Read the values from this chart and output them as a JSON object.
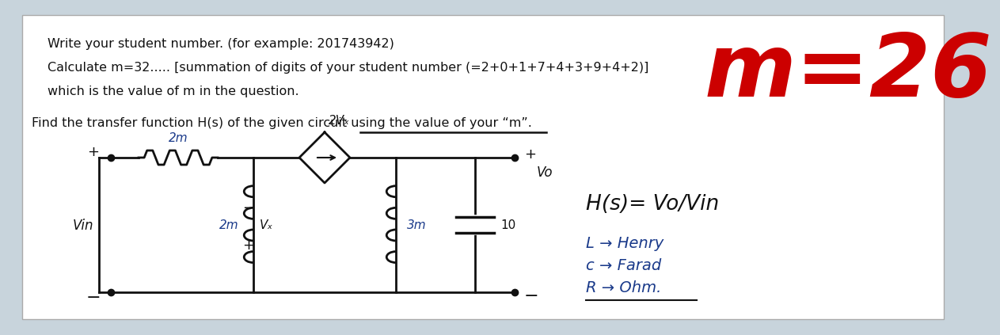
{
  "bg_outer": "#c8d4dc",
  "bg_inner": "#ffffff",
  "text_lines": [
    "Write your student number. (for example: 201743942)",
    "Calculate m=32..... [summation of digits of your student number (=2+0+1+7+4+3+9+4+2)]",
    "which is the value of m in the question."
  ],
  "find_text": "Find the transfer function H(s) of the given circuit using the value of your “m”.",
  "m_label": "m=26",
  "hs_label": "H(s)= Vo/Vin",
  "legend_lines": [
    "L → Henry",
    "c → Farad",
    "R → Ohm."
  ],
  "circuit": {
    "resistor_top": "2m",
    "dep_source": "2Vₓ",
    "inductor_left": "2m",
    "vx_label": "Vₓ",
    "inductor_right": "3m",
    "capacitor": "10",
    "vin": "Vin",
    "vo": "Vo"
  },
  "black": "#111111",
  "blue": "#1a3a8a",
  "red": "#cc0000"
}
